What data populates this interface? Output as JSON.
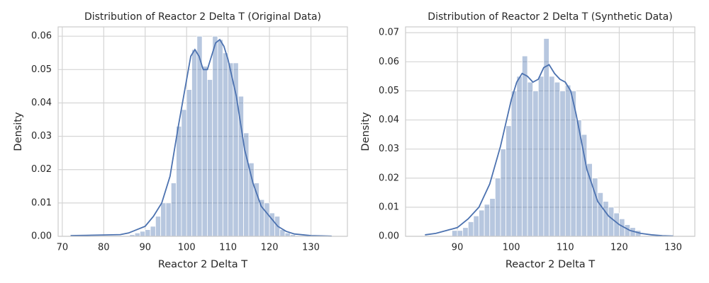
{
  "chart_data": [
    {
      "type": "histogram",
      "title": "Distribution of Reactor 2 Delta T (Original Data)",
      "xlabel": "Reactor 2 Delta T",
      "ylabel": "Density",
      "bins": [
        86.25,
        87.5,
        88.75,
        90,
        91.25,
        92.5,
        93.75,
        95,
        96.25,
        97.5,
        98.75,
        100,
        101.25,
        102.5,
        103.75,
        105,
        106.25,
        107.5,
        108.75,
        110,
        111.25,
        112.5,
        113.75,
        115,
        116.25,
        117.5,
        118.75,
        120,
        121.25,
        122.5,
        123.75,
        125,
        126.25
      ],
      "values": [
        0.0005,
        0.001,
        0.0015,
        0.002,
        0.003,
        0.006,
        0.01,
        0.01,
        0.016,
        0.033,
        0.038,
        0.044,
        0.056,
        0.06,
        0.051,
        0.047,
        0.06,
        0.059,
        0.055,
        0.052,
        0.052,
        0.042,
        0.031,
        0.022,
        0.016,
        0.011,
        0.01,
        0.007,
        0.006,
        0.002,
        0.001,
        0.0005
      ],
      "color": "#4c72b0",
      "kde": {
        "color": "#4c72b0",
        "x": [
          72,
          76,
          80,
          84,
          86,
          88,
          90,
          92,
          94,
          96,
          98,
          100,
          101,
          102,
          103,
          104,
          105,
          106,
          107,
          108,
          109,
          110,
          112,
          114,
          116,
          118,
          120,
          122,
          124,
          126,
          130,
          135
        ],
        "y": [
          0.0002,
          0.0003,
          0.0004,
          0.0005,
          0.001,
          0.002,
          0.003,
          0.006,
          0.01,
          0.018,
          0.033,
          0.047,
          0.054,
          0.056,
          0.054,
          0.05,
          0.05,
          0.054,
          0.058,
          0.059,
          0.057,
          0.053,
          0.042,
          0.026,
          0.016,
          0.009,
          0.006,
          0.003,
          0.0015,
          0.0007,
          0.0002,
          5e-05
        ]
      },
      "xlim": [
        69,
        138.8
      ],
      "ylim": [
        0,
        0.0628
      ],
      "xticks": [
        70,
        80,
        90,
        100,
        110,
        120,
        130
      ],
      "yticks": [
        {
          "value": 0,
          "label": "0.00"
        },
        {
          "value": 0.01,
          "label": "0.01"
        },
        {
          "value": 0.02,
          "label": "0.02"
        },
        {
          "value": 0.03,
          "label": "0.03"
        },
        {
          "value": 0.04,
          "label": "0.04"
        },
        {
          "value": 0.05,
          "label": "0.05"
        },
        {
          "value": 0.06,
          "label": "0.06"
        }
      ],
      "grid": true
    },
    {
      "type": "histogram",
      "title": "Distribution of Reactor 2 Delta T (Synthetic Data)",
      "xlabel": "Reactor 2 Delta T",
      "ylabel": "Density",
      "bins": [
        89,
        90,
        91,
        92,
        93,
        94,
        95,
        96,
        97,
        98,
        99,
        100,
        101,
        102,
        103,
        104,
        105,
        106,
        107,
        108,
        109,
        110,
        111,
        112,
        113,
        114,
        115,
        116,
        117,
        118,
        119,
        120,
        121,
        122,
        123,
        124
      ],
      "values": [
        0.002,
        0.002,
        0.003,
        0.005,
        0.007,
        0.009,
        0.011,
        0.013,
        0.02,
        0.03,
        0.038,
        0.05,
        0.055,
        0.062,
        0.053,
        0.05,
        0.055,
        0.068,
        0.055,
        0.053,
        0.05,
        0.052,
        0.05,
        0.04,
        0.035,
        0.025,
        0.02,
        0.015,
        0.012,
        0.01,
        0.008,
        0.006,
        0.004,
        0.003,
        0.002
      ],
      "color": "#4c72b0",
      "kde": {
        "color": "#4c72b0",
        "x": [
          84,
          86,
          88,
          90,
          92,
          94,
          96,
          98,
          100,
          101,
          102,
          103,
          104,
          105,
          106,
          107,
          108,
          109,
          110,
          111,
          112,
          114,
          116,
          118,
          120,
          122,
          124,
          126,
          128,
          130
        ],
        "y": [
          0.0005,
          0.001,
          0.002,
          0.003,
          0.006,
          0.01,
          0.018,
          0.031,
          0.047,
          0.053,
          0.056,
          0.055,
          0.053,
          0.054,
          0.058,
          0.059,
          0.056,
          0.054,
          0.053,
          0.05,
          0.042,
          0.023,
          0.012,
          0.007,
          0.004,
          0.002,
          0.001,
          0.0005,
          0.0002,
          0.0001
        ]
      },
      "xlim": [
        80.4,
        134
      ],
      "ylim": [
        0,
        0.072
      ],
      "xticks": [
        90,
        100,
        110,
        120,
        130
      ],
      "yticks": [
        {
          "value": 0,
          "label": "0.00"
        },
        {
          "value": 0.01,
          "label": "0.01"
        },
        {
          "value": 0.02,
          "label": "0.02"
        },
        {
          "value": 0.03,
          "label": "0.03"
        },
        {
          "value": 0.04,
          "label": "0.04"
        },
        {
          "value": 0.05,
          "label": "0.05"
        },
        {
          "value": 0.06,
          "label": "0.06"
        },
        {
          "value": 0.07,
          "label": "0.07"
        }
      ],
      "grid": true
    }
  ]
}
